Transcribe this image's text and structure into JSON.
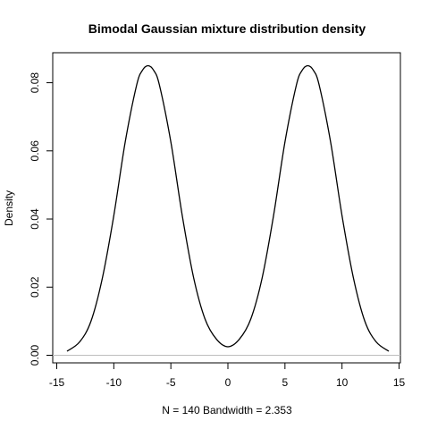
{
  "chart_data": {
    "type": "line",
    "title": "Bimodal Gaussian mixture distribution density",
    "xlabel": "N = 140   Bandwidth = 2.353",
    "ylabel": "Density",
    "xlim": [
      -15,
      15
    ],
    "ylim": [
      0,
      0.085
    ],
    "x_ticks": [
      -15,
      -10,
      -5,
      0,
      5,
      10,
      15
    ],
    "y_ticks": [
      0.0,
      0.02,
      0.04,
      0.06,
      0.08
    ],
    "x_tick_labels": [
      "-15",
      "-10",
      "-5",
      "0",
      "5",
      "10",
      "15"
    ],
    "y_tick_labels": [
      "0.00",
      "0.02",
      "0.04",
      "0.06",
      "0.08"
    ],
    "baseline_color": "#bebebe",
    "line_color": "#000000",
    "series": [
      {
        "x": [
          -14.1,
          -13,
          -12,
          -11,
          -10,
          -9,
          -8,
          -7.5,
          -7,
          -6.5,
          -6,
          -5,
          -4,
          -3,
          -2,
          -1,
          0,
          1,
          2,
          3,
          4,
          5,
          6,
          6.5,
          7,
          7.5,
          8,
          9,
          10,
          11,
          12,
          13,
          14.1
        ],
        "values": [
          0.0012,
          0.0039,
          0.01,
          0.0227,
          0.041,
          0.0626,
          0.0793,
          0.0836,
          0.085,
          0.0836,
          0.0793,
          0.0626,
          0.041,
          0.0227,
          0.0106,
          0.0047,
          0.0025,
          0.0047,
          0.0106,
          0.0227,
          0.041,
          0.0626,
          0.0793,
          0.0836,
          0.085,
          0.0836,
          0.0793,
          0.0626,
          0.041,
          0.0227,
          0.01,
          0.0039,
          0.0012
        ]
      }
    ]
  }
}
